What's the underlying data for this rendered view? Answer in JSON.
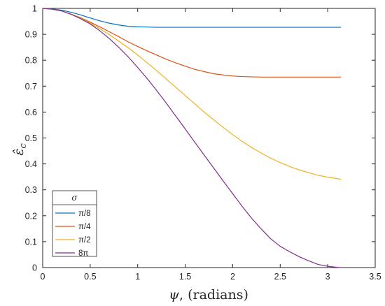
{
  "chart_data": {
    "type": "line",
    "xlabel_symbol": "ψ",
    "xlabel_text": ", (radians)",
    "ylabel": "ε̂",
    "ylabel_sub": "c",
    "xlim": [
      0,
      3.5
    ],
    "ylim": [
      0,
      1
    ],
    "x_ticks": [
      0,
      0.5,
      1,
      1.5,
      2,
      2.5,
      3,
      3.5
    ],
    "x_tick_labels": [
      "0",
      "0.5",
      "1",
      "1.5",
      "2",
      "2.5",
      "3",
      "3.5"
    ],
    "y_ticks": [
      0,
      0.1,
      0.2,
      0.3,
      0.4,
      0.5,
      0.6,
      0.7,
      0.8,
      0.9,
      1
    ],
    "y_tick_labels": [
      "0",
      "0.1",
      "0.2",
      "0.3",
      "0.4",
      "0.5",
      "0.6",
      "0.7",
      "0.8",
      "0.9",
      "1"
    ],
    "grid": false,
    "legend_title": "σ",
    "legend_position": "bottom-left",
    "x": [
      0,
      0.1,
      0.2,
      0.3,
      0.4,
      0.5,
      0.6,
      0.7,
      0.8,
      0.9,
      1.0,
      1.1,
      1.2,
      1.3,
      1.4,
      1.5,
      1.6,
      1.7,
      1.8,
      1.9,
      2.0,
      2.1,
      2.2,
      2.3,
      2.4,
      2.5,
      2.6,
      2.7,
      2.8,
      2.9,
      3.0,
      3.1,
      3.14
    ],
    "series": [
      {
        "name": "π/8",
        "color": "#0072BD",
        "values": [
          1.0,
          0.998,
          0.993,
          0.985,
          0.975,
          0.963,
          0.952,
          0.943,
          0.936,
          0.931,
          0.929,
          0.928,
          0.927,
          0.927,
          0.927,
          0.927,
          0.927,
          0.927,
          0.927,
          0.927,
          0.927,
          0.927,
          0.927,
          0.927,
          0.927,
          0.927,
          0.927,
          0.927,
          0.927,
          0.927,
          0.927,
          0.927,
          0.927
        ]
      },
      {
        "name": "π/4",
        "color": "#D95319",
        "values": [
          1.0,
          0.997,
          0.99,
          0.978,
          0.964,
          0.947,
          0.929,
          0.91,
          0.891,
          0.871,
          0.853,
          0.836,
          0.82,
          0.804,
          0.79,
          0.777,
          0.765,
          0.756,
          0.748,
          0.743,
          0.739,
          0.737,
          0.736,
          0.735,
          0.735,
          0.735,
          0.735,
          0.735,
          0.735,
          0.735,
          0.735,
          0.735,
          0.735
        ]
      },
      {
        "name": "π/2",
        "color": "#EDB120",
        "values": [
          1.0,
          0.997,
          0.99,
          0.978,
          0.962,
          0.943,
          0.922,
          0.899,
          0.874,
          0.848,
          0.82,
          0.79,
          0.76,
          0.728,
          0.696,
          0.664,
          0.632,
          0.6,
          0.57,
          0.541,
          0.513,
          0.487,
          0.463,
          0.442,
          0.422,
          0.405,
          0.39,
          0.377,
          0.366,
          0.356,
          0.349,
          0.343,
          0.341
        ]
      },
      {
        "name": "8π",
        "color": "#7E2F8E",
        "values": [
          1.0,
          0.997,
          0.99,
          0.977,
          0.96,
          0.94,
          0.914,
          0.884,
          0.85,
          0.813,
          0.772,
          0.729,
          0.683,
          0.635,
          0.585,
          0.535,
          0.484,
          0.434,
          0.384,
          0.334,
          0.285,
          0.236,
          0.19,
          0.149,
          0.111,
          0.082,
          0.061,
          0.042,
          0.026,
          0.012,
          0.005,
          0.001,
          0.0
        ]
      }
    ]
  }
}
